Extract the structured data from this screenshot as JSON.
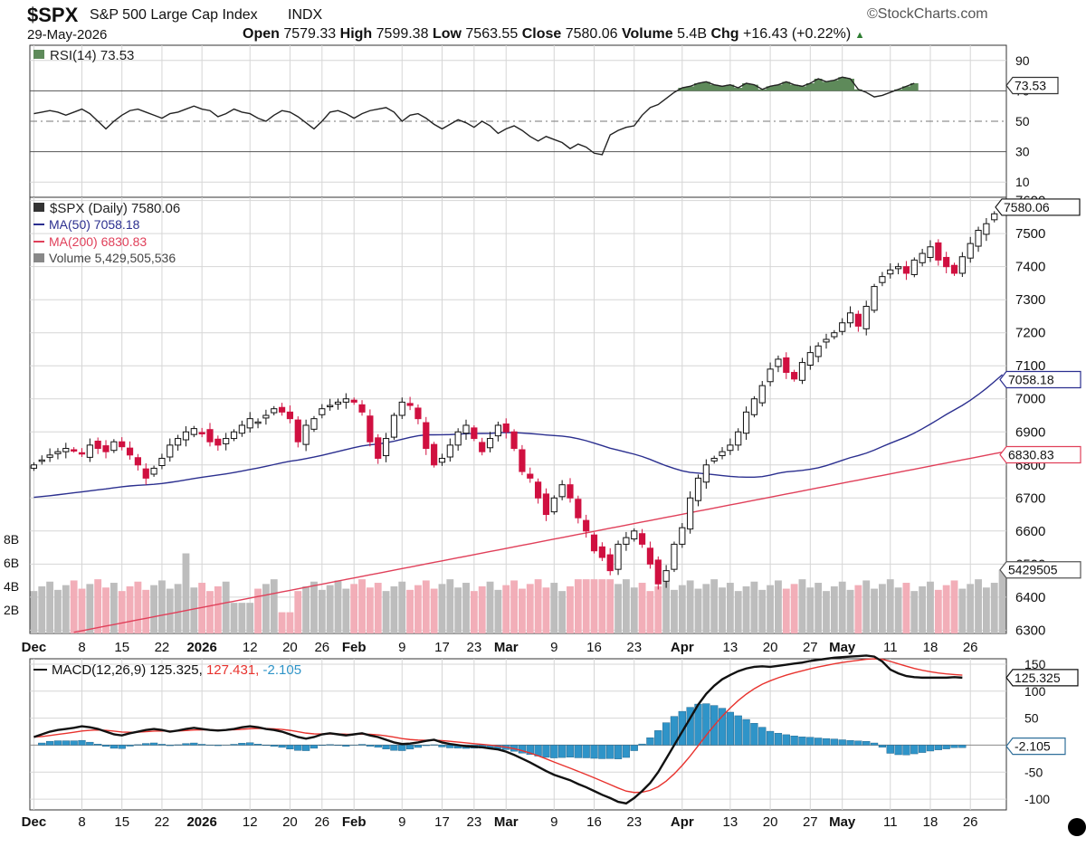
{
  "header": {
    "symbol": "$SPX",
    "name": "S&P 500 Large Cap Index",
    "exchange": "INDX",
    "source": "©StockCharts.com",
    "date": "29-May-2026",
    "open_label": "Open",
    "open": "7579.33",
    "high_label": "High",
    "high": "7599.38",
    "low_label": "Low",
    "low": "7563.55",
    "close_label": "Close",
    "close": "7580.06",
    "volume_label": "Volume",
    "volume": "5.4B",
    "chg_label": "Chg",
    "chg": "+16.43 (+0.22%)"
  },
  "colors": {
    "up_candle": "#111111",
    "down_candle": "#d01040",
    "ma50": "#2b2f8f",
    "ma200": "#e0405a",
    "vol_up": "#bdbdbd",
    "vol_down": "#f2aeb8",
    "rsi_line": "#222222",
    "rsi_fill": "#5e8a5a",
    "macd_line": "#111111",
    "signal_line": "#e8332e",
    "hist": "#2f94c8",
    "grid": "#d6d6d6"
  },
  "chart_data": [
    {
      "type": "line",
      "panel": "rsi",
      "legend": "RSI(14) 73.53",
      "current": "73.53",
      "y_ticks": [
        "90",
        "70",
        "50",
        "30",
        "10"
      ],
      "ylim": [
        0,
        100
      ],
      "reference_lines": [
        70,
        50,
        30
      ],
      "points": [
        55,
        56,
        57,
        56,
        54,
        56,
        58,
        55,
        50,
        45,
        50,
        54,
        57,
        58,
        56,
        54,
        52,
        55,
        56,
        58,
        60,
        58,
        57,
        53,
        55,
        58,
        56,
        55,
        52,
        50,
        54,
        57,
        56,
        53,
        49,
        45,
        50,
        56,
        57,
        55,
        52,
        55,
        57,
        58,
        59,
        56,
        50,
        54,
        55,
        52,
        48,
        45,
        48,
        51,
        49,
        46,
        50,
        47,
        42,
        45,
        47,
        44,
        40,
        37,
        40,
        38,
        36,
        32,
        35,
        33,
        29,
        28,
        41,
        44,
        46,
        47,
        54,
        59,
        61,
        65,
        69,
        72,
        73,
        75,
        76,
        74,
        73,
        74,
        72,
        75,
        74,
        71,
        73,
        74,
        76,
        74,
        73,
        75,
        78,
        76,
        77,
        79,
        78,
        71,
        69,
        66,
        67,
        69,
        71,
        73,
        75
      ]
    },
    {
      "type": "candlestick",
      "panel": "price",
      "legend": {
        "price": "$SPX (Daily) 7580.06",
        "ma50": "MA(50) 7058.18",
        "ma200": "MA(200) 6830.83",
        "volume": "Volume 5,429,505,536"
      },
      "ylim": [
        6290,
        7610
      ],
      "y_ticks": [
        "7600",
        "7500",
        "7400",
        "7300",
        "7200",
        "7100",
        "7000",
        "6900",
        "6800",
        "6700",
        "6600",
        "6500",
        "6400",
        "6300"
      ],
      "volume_ticks": [
        "8B",
        "6B",
        "4B",
        "2B"
      ],
      "volume_ylim_billions": [
        0,
        10
      ],
      "last_labels": {
        "close": "7580.06",
        "ma50": "7058.18",
        "ma200": "6830.83",
        "volume": "5429505"
      },
      "x_ticks": [
        "Dec",
        "8",
        "15",
        "22",
        "2026",
        "12",
        "20",
        "26",
        "Feb",
        "9",
        "17",
        "23",
        "Mar",
        "9",
        "16",
        "23",
        "Apr",
        "13",
        "20",
        "27",
        "May",
        "11",
        "18",
        "26"
      ],
      "x_tick_bold": [
        "Dec",
        "2026",
        "Feb",
        "Mar",
        "Apr",
        "May"
      ],
      "x_tick_index": [
        0,
        6,
        11,
        16,
        21,
        27,
        32,
        36,
        40,
        46,
        51,
        55,
        59,
        65,
        70,
        75,
        81,
        87,
        92,
        97,
        101,
        107,
        112,
        117
      ],
      "close": [
        6800,
        6815,
        6830,
        6840,
        6850,
        6845,
        6835,
        6860,
        6850,
        6840,
        6870,
        6855,
        6830,
        6800,
        6760,
        6790,
        6820,
        6860,
        6880,
        6900,
        6910,
        6895,
        6870,
        6860,
        6880,
        6900,
        6920,
        6940,
        6930,
        6950,
        6970,
        6960,
        6940,
        6870,
        6920,
        6940,
        6970,
        6980,
        6990,
        7000,
        6990,
        6960,
        6870,
        6820,
        6880,
        6950,
        6990,
        6980,
        6940,
        6850,
        6800,
        6820,
        6860,
        6900,
        6920,
        6880,
        6840,
        6880,
        6920,
        6900,
        6850,
        6780,
        6760,
        6700,
        6650,
        6700,
        6740,
        6700,
        6640,
        6600,
        6540,
        6520,
        6480,
        6560,
        6580,
        6600,
        6560,
        6500,
        6440,
        6480,
        6560,
        6610,
        6700,
        6760,
        6800,
        6820,
        6840,
        6860,
        6900,
        6960,
        7000,
        7040,
        7090,
        7120,
        7080,
        7060,
        7110,
        7140,
        7160,
        7180,
        7200,
        7230,
        7260,
        7220,
        7280,
        7340,
        7370,
        7390,
        7400,
        7380,
        7420,
        7440,
        7460,
        7420,
        7400,
        7380,
        7430,
        7470,
        7510,
        7530,
        7560,
        7580
      ]
    },
    {
      "type": "line",
      "panel": "macd",
      "legend": {
        "label": "MACD(12,26,9)",
        "macd": "125.325",
        "signal": "127.431",
        "hist": "-2.105"
      },
      "ylim": [
        -120,
        160
      ],
      "y_ticks": [
        "150",
        "100",
        "50",
        "-50",
        "-100"
      ],
      "current_labels": {
        "macd": "125.325",
        "hist": "-2.105"
      },
      "x_ticks": [
        "Dec",
        "8",
        "15",
        "22",
        "2026",
        "12",
        "20",
        "26",
        "Feb",
        "9",
        "17",
        "23",
        "Mar",
        "9",
        "16",
        "23",
        "Apr",
        "13",
        "20",
        "27",
        "May",
        "11",
        "18",
        "26"
      ],
      "macd": [
        15,
        20,
        25,
        28,
        30,
        32,
        35,
        33,
        30,
        25,
        20,
        18,
        22,
        25,
        28,
        30,
        28,
        25,
        27,
        30,
        32,
        30,
        28,
        27,
        28,
        30,
        33,
        35,
        33,
        30,
        28,
        25,
        20,
        15,
        12,
        15,
        20,
        22,
        20,
        18,
        20,
        22,
        18,
        15,
        10,
        5,
        2,
        3,
        5,
        8,
        10,
        5,
        2,
        0,
        -2,
        -3,
        -4,
        -6,
        -8,
        -12,
        -18,
        -25,
        -32,
        -40,
        -48,
        -55,
        -60,
        -65,
        -72,
        -78,
        -85,
        -92,
        -98,
        -105,
        -108,
        -98,
        -85,
        -70,
        -50,
        -25,
        0,
        25,
        50,
        75,
        95,
        110,
        122,
        130,
        137,
        142,
        145,
        146,
        145,
        147,
        149,
        151,
        153,
        156,
        158,
        160,
        162,
        163,
        164,
        165,
        166,
        164,
        155,
        140,
        133,
        128,
        126,
        125,
        125,
        125,
        125,
        126,
        125
      ]
    }
  ]
}
